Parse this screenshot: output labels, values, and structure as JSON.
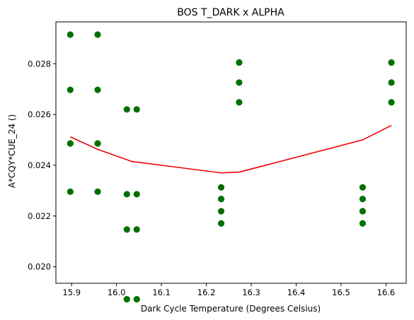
{
  "chart_data": {
    "type": "scatter",
    "title": "BOS T_DARK x ALPHA",
    "xlabel": "Dark Cycle Temperature (Degrees Celsius)",
    "ylabel": "A*CQY*CUE_24 ()",
    "xlim": [
      15.865,
      16.645
    ],
    "ylim": [
      0.01935,
      0.02965
    ],
    "xticks": [
      "15.9",
      "16.0",
      "16.1",
      "16.2",
      "16.3",
      "16.4",
      "16.5",
      "16.6"
    ],
    "yticks": [
      "0.020",
      "0.022",
      "0.024",
      "0.026",
      "0.028"
    ],
    "grid": false,
    "legend": "none",
    "series": [
      {
        "type": "scatter",
        "color": "#007000",
        "points": [
          [
            15.897,
            0.02915
          ],
          [
            15.897,
            0.02697
          ],
          [
            15.897,
            0.02486
          ],
          [
            15.897,
            0.02296
          ],
          [
            15.958,
            0.02915
          ],
          [
            15.958,
            0.02697
          ],
          [
            15.958,
            0.02486
          ],
          [
            15.958,
            0.02296
          ],
          [
            16.023,
            0.0262
          ],
          [
            16.023,
            0.02286
          ],
          [
            16.023,
            0.02147
          ],
          [
            16.023,
            0.01872
          ],
          [
            16.045,
            0.0262
          ],
          [
            16.045,
            0.02286
          ],
          [
            16.045,
            0.02147
          ],
          [
            16.045,
            0.01872
          ],
          [
            16.233,
            0.02313
          ],
          [
            16.233,
            0.02267
          ],
          [
            16.233,
            0.02219
          ],
          [
            16.233,
            0.02171
          ],
          [
            16.273,
            0.02805
          ],
          [
            16.273,
            0.02726
          ],
          [
            16.273,
            0.02648
          ],
          [
            16.548,
            0.02313
          ],
          [
            16.548,
            0.02267
          ],
          [
            16.548,
            0.02219
          ],
          [
            16.548,
            0.02171
          ],
          [
            16.612,
            0.02805
          ],
          [
            16.612,
            0.02726
          ],
          [
            16.612,
            0.02648
          ]
        ]
      },
      {
        "type": "line",
        "color": "#ee0000",
        "points": [
          [
            15.897,
            0.02512
          ],
          [
            15.958,
            0.02463
          ],
          [
            16.034,
            0.02415
          ],
          [
            16.233,
            0.0237
          ],
          [
            16.273,
            0.02373
          ],
          [
            16.548,
            0.025
          ],
          [
            16.612,
            0.02557
          ]
        ]
      }
    ]
  }
}
